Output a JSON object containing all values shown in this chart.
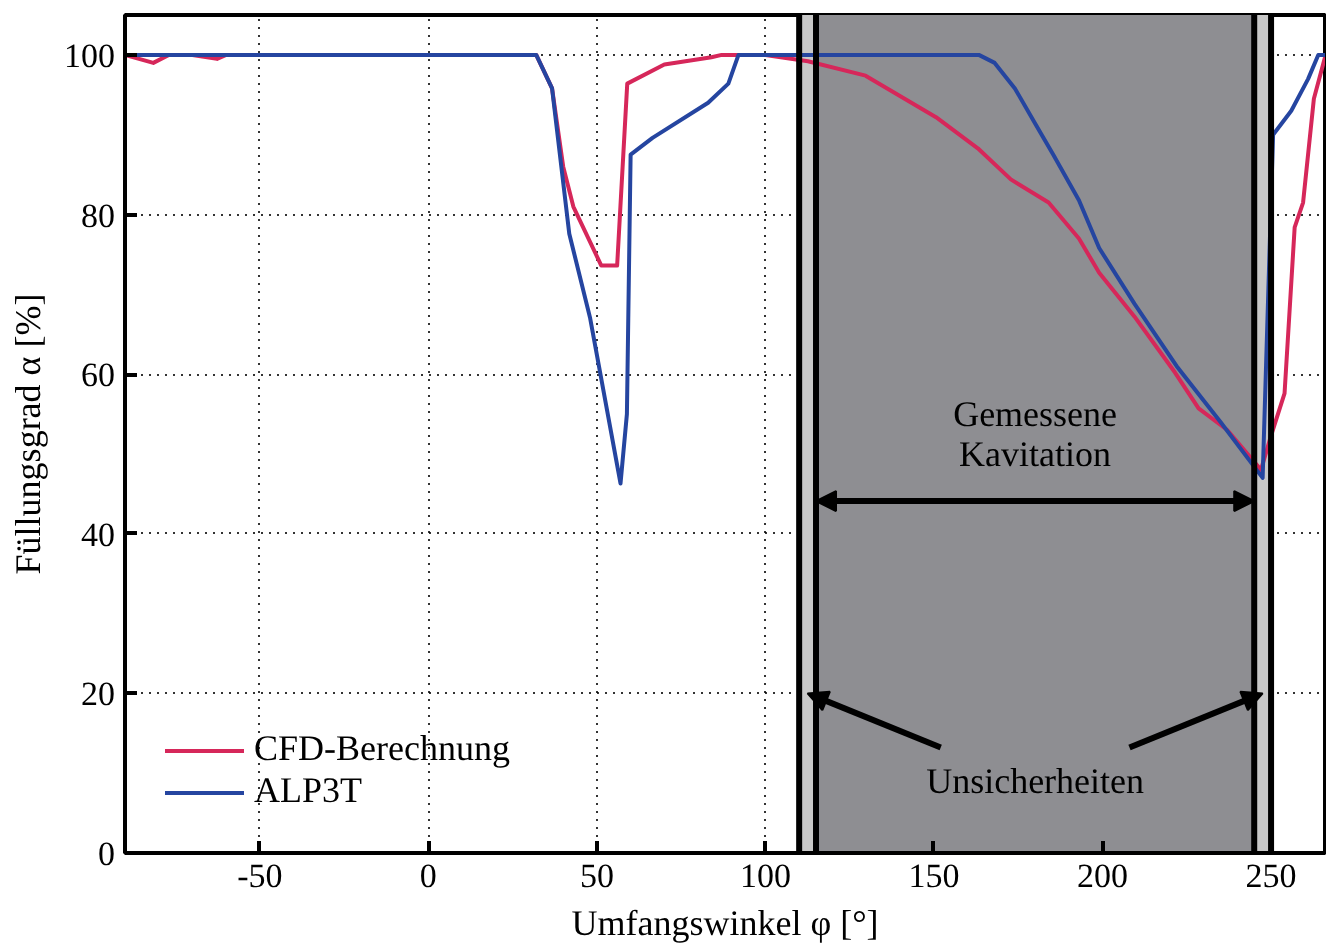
{
  "chart_data": {
    "type": "line",
    "xlabel": "Umfangswinkel φ [°]",
    "ylabel": "Füllungsgrad α [%]",
    "xlim": [
      -90,
      266
    ],
    "ylim": [
      0,
      105
    ],
    "xticks": [
      -50,
      0,
      50,
      100,
      150,
      200,
      250
    ],
    "yticks": [
      0,
      20,
      40,
      60,
      80,
      100
    ],
    "grid": true,
    "legend": "bottom left",
    "line_style": "solid",
    "marker": "none",
    "series": [
      {
        "name": "CFD-Berechnung",
        "color": "#d6275a",
        "x": [
          -90,
          -81.6,
          -77,
          -70,
          -62.7,
          -60,
          32,
          36.7,
          40,
          43,
          51.3,
          56,
          59,
          70,
          84,
          87,
          100,
          112.6,
          129.7,
          150.6,
          163,
          172.8,
          184,
          193,
          199,
          209.5,
          221.5,
          228.5,
          237,
          247,
          250,
          254,
          257,
          259.5,
          262.7,
          266
        ],
        "values": [
          100,
          99,
          100,
          100,
          99.5,
          100,
          100,
          95.8,
          86,
          81,
          73.6,
          73.6,
          96.4,
          98.8,
          99.7,
          100,
          100,
          99.2,
          97.4,
          92.2,
          88.3,
          84.4,
          81.5,
          77,
          72.7,
          67.2,
          60.2,
          55.7,
          53,
          48,
          52.3,
          57.6,
          78.4,
          81.5,
          94.5,
          99.7
        ]
      },
      {
        "name": "ALP3T",
        "color": "#2545a0",
        "x": [
          -90,
          32,
          36.7,
          41.8,
          48,
          57,
          58.9,
          60,
          66.5,
          83,
          89,
          92,
          163.3,
          168,
          174,
          180,
          185.4,
          193,
          199,
          209.5,
          222,
          235,
          247.5,
          250.6,
          256,
          261,
          264,
          266
        ],
        "values": [
          100,
          100,
          95.8,
          77.6,
          67,
          46.3,
          55,
          87.5,
          89.6,
          94,
          96.4,
          100,
          100,
          99,
          95.8,
          91.4,
          87.5,
          81.8,
          75.8,
          68.8,
          61,
          54,
          47,
          90,
          93,
          97,
          100,
          100
        ]
      }
    ],
    "bands": [
      {
        "axis": "x",
        "from": 110,
        "to": 115,
        "color": "#c8c8c8"
      },
      {
        "axis": "x",
        "from": 115,
        "to": 245,
        "color": "#8e8e92"
      },
      {
        "axis": "x",
        "from": 245,
        "to": 250,
        "color": "#c8c8c8"
      }
    ],
    "ref_lines": [
      {
        "axis": "x",
        "value": 110,
        "color": "#000000"
      },
      {
        "axis": "x",
        "value": 115,
        "color": "#000000"
      },
      {
        "axis": "x",
        "value": 245,
        "color": "#000000"
      },
      {
        "axis": "x",
        "value": 250,
        "color": "#000000"
      }
    ],
    "annotations": [
      "Gemessene\nKavitation",
      {
        "text": "Unsicherheiten",
        "x": 112.5,
        "y": 20
      }
    ]
  }
}
